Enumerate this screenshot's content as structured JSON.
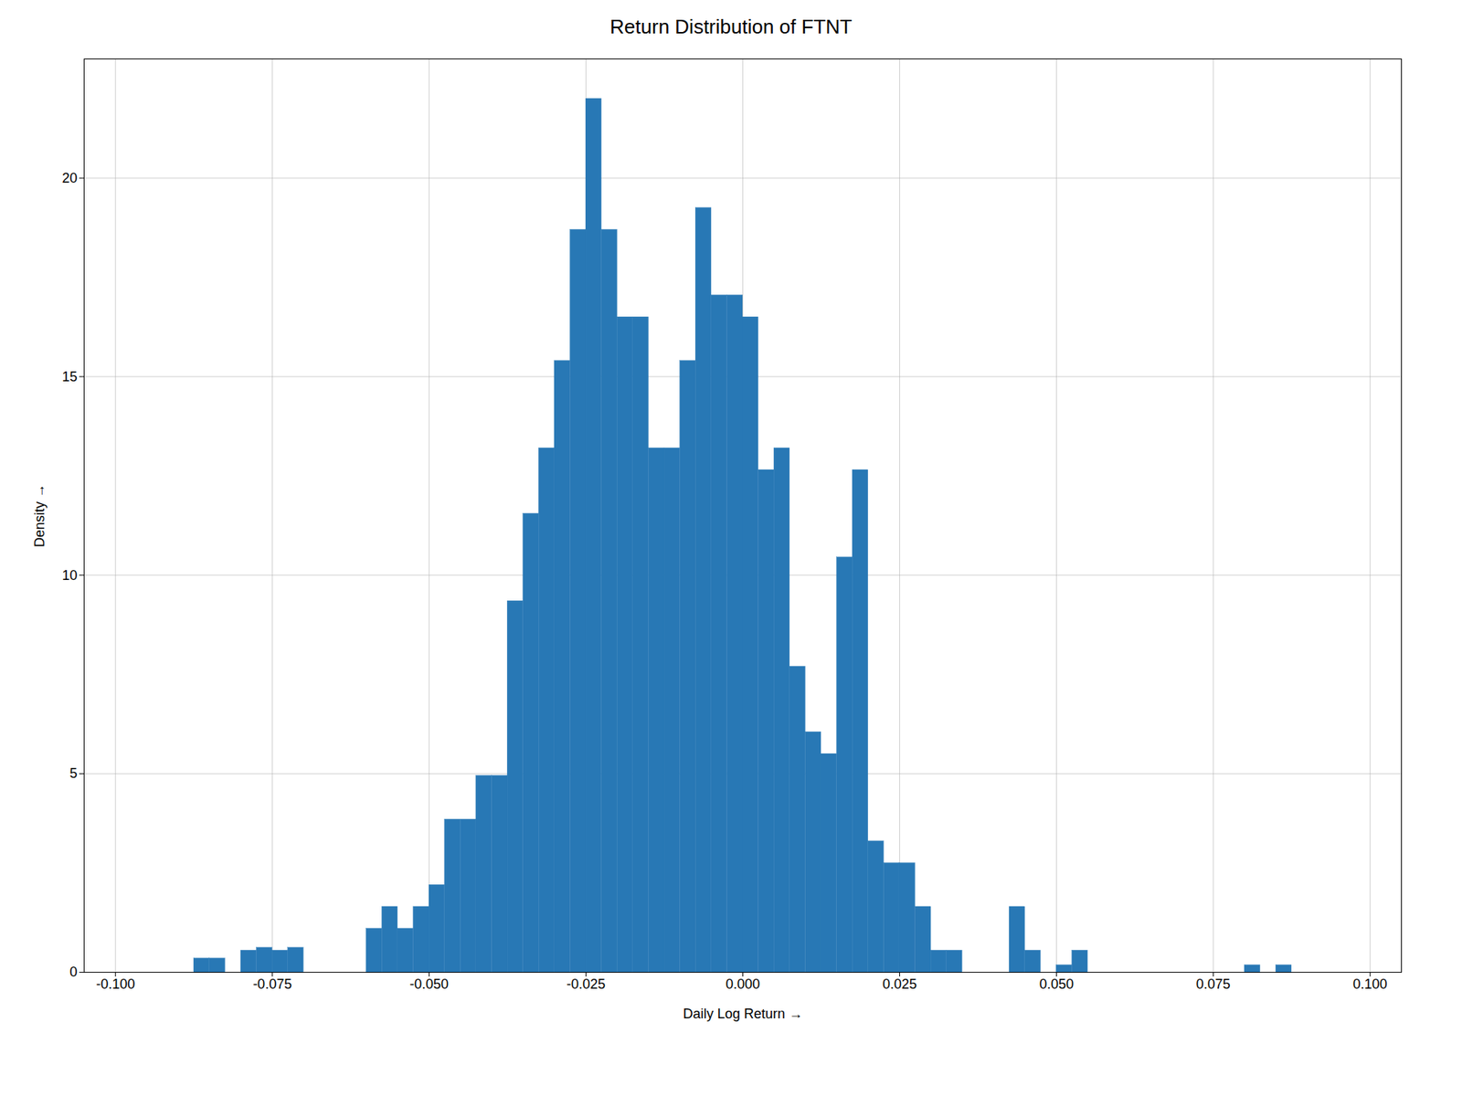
{
  "chart_data": {
    "type": "histogram",
    "title": "Return Distribution of FTNT",
    "xlabel": "Daily Log Return",
    "ylabel": "Density",
    "color": "#2878b5",
    "xlim": [
      -0.105,
      0.105
    ],
    "ylim": [
      0,
      23
    ],
    "xticks": [
      {
        "value": -0.1,
        "label": "-0.100"
      },
      {
        "value": -0.075,
        "label": "-0.075"
      },
      {
        "value": -0.05,
        "label": "-0.050"
      },
      {
        "value": -0.025,
        "label": "-0.025"
      },
      {
        "value": 0,
        "label": "0.000"
      },
      {
        "value": 0.025,
        "label": "0.025"
      },
      {
        "value": 0.05,
        "label": "0.050"
      },
      {
        "value": 0.075,
        "label": "0.075"
      },
      {
        "value": 0.1,
        "label": "0.100"
      }
    ],
    "yticks": [
      0,
      5,
      10,
      15,
      20
    ],
    "grid": true,
    "bin_width": 0.0025,
    "x": [
      -0.0875,
      -0.085,
      -0.08,
      -0.0775,
      -0.075,
      -0.0725,
      -0.07,
      -0.0675,
      -0.065,
      -0.0625,
      -0.06,
      -0.0575,
      -0.055,
      -0.0525,
      -0.05,
      -0.0475,
      -0.045,
      -0.0425,
      -0.04,
      -0.0375,
      -0.035,
      -0.0325,
      -0.03,
      -0.0275,
      -0.025,
      -0.0225,
      -0.02,
      -0.0175,
      -0.015,
      -0.0125,
      -0.01,
      -0.0075,
      -0.005,
      -0.0025,
      0.0,
      0.0025,
      0.005,
      0.0075,
      0.01,
      0.0125,
      0.015,
      0.0175,
      0.02,
      0.0225,
      0.025,
      0.0275,
      0.03,
      0.0325,
      0.035,
      0.0375,
      0.04,
      0.0425,
      0.045,
      0.0475,
      0.05,
      0.0525,
      0.055,
      0.0575,
      0.06,
      0.0625,
      0.08,
      0.085
    ],
    "values": [
      0.35,
      0.35,
      0.55,
      0.62,
      0.55,
      0.62,
      0.0,
      0.0,
      0.0,
      0.0,
      1.1,
      1.65,
      1.1,
      1.65,
      2.2,
      3.85,
      3.85,
      4.95,
      4.95,
      9.35,
      11.55,
      13.2,
      15.4,
      18.7,
      22.0,
      18.7,
      16.5,
      16.5,
      13.2,
      13.2,
      15.4,
      19.25,
      17.05,
      17.05,
      16.5,
      12.65,
      13.2,
      7.7,
      6.05,
      5.5,
      10.45,
      12.65,
      3.3,
      2.75,
      2.75,
      1.65,
      0.55,
      0.55,
      0.0,
      0.0,
      0.0,
      1.65,
      0.55,
      0.0,
      0.18,
      0.55,
      0.0,
      0.0,
      0.0,
      0.0,
      0.18,
      0.18
    ]
  }
}
